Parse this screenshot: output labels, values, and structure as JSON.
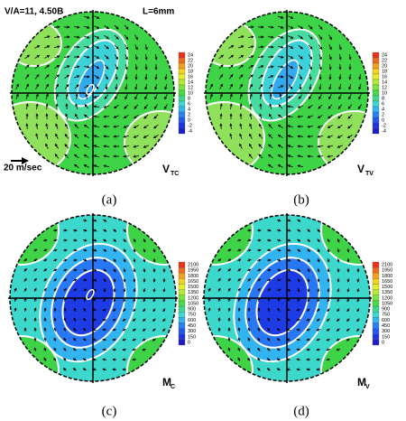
{
  "header": {
    "title": "V/A=11, 4.50B",
    "length": "L=6mm",
    "scale": "20 m/sec"
  },
  "panels": [
    {
      "caption": "(a)",
      "symbol": {
        "main": "V",
        "sub": "TC"
      },
      "colorbar": [
        "24",
        "22",
        "20",
        "18",
        "16",
        "14",
        "12",
        "10",
        "8",
        "6",
        "4",
        "2",
        "0",
        "-2",
        "-4"
      ]
    },
    {
      "caption": "(b)",
      "symbol": {
        "main": "V",
        "sub": "TV"
      },
      "colorbar": [
        "24",
        "22",
        "20",
        "18",
        "16",
        "14",
        "12",
        "10",
        "8",
        "6",
        "4",
        "2",
        "0",
        "-2",
        "-4"
      ]
    },
    {
      "caption": "(c)",
      "symbol": {
        "main": "M",
        "sub": "C"
      },
      "colorbar": [
        "2100",
        "1950",
        "1800",
        "1650",
        "1500",
        "1350",
        "1200",
        "1050",
        "900",
        "750",
        "600",
        "450",
        "300",
        "150",
        "0"
      ]
    },
    {
      "caption": "(d)",
      "symbol": {
        "main": "M",
        "sub": "V"
      },
      "colorbar": [
        "2100",
        "1950",
        "1800",
        "1650",
        "1500",
        "1350",
        "1200",
        "1050",
        "900",
        "750",
        "600",
        "450",
        "300",
        "150",
        "0"
      ]
    }
  ]
}
